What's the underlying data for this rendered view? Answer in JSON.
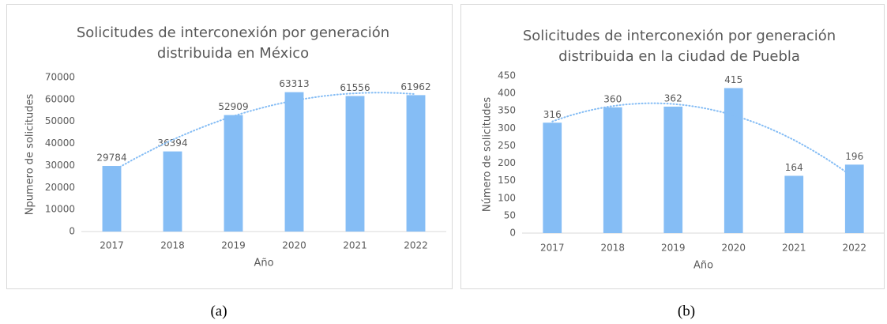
{
  "chart_data": [
    {
      "type": "bar",
      "title": [
        "Solicitudes de interconexión por generación",
        "distribuida en México"
      ],
      "categories": [
        "2017",
        "2018",
        "2019",
        "2020",
        "2021",
        "2022"
      ],
      "values": [
        29784,
        36394,
        52909,
        63313,
        61556,
        61962
      ],
      "color": "#85bdf5",
      "ylim": [
        0,
        70000
      ],
      "yticks": [
        0,
        10000,
        20000,
        30000,
        40000,
        50000,
        60000,
        70000
      ],
      "grid": false,
      "trendline": "polynomial",
      "xlabel": "Año",
      "ylabel": "Npumero de solicitudes",
      "caption": "(a)"
    },
    {
      "type": "bar",
      "title": [
        "Solicitudes de interconexión por generación",
        "distribuida en la ciudad de Puebla"
      ],
      "categories": [
        "2017",
        "2018",
        "2019",
        "2020",
        "2021",
        "2022"
      ],
      "values": [
        316,
        360,
        362,
        415,
        164,
        196
      ],
      "color": "#85bdf5",
      "ylim": [
        0,
        450
      ],
      "yticks": [
        0,
        50,
        100,
        150,
        200,
        250,
        300,
        350,
        400,
        450
      ],
      "grid": false,
      "trendline": "polynomial",
      "xlabel": "Año",
      "ylabel": "Número de solicitudes",
      "caption": "(b)"
    }
  ]
}
